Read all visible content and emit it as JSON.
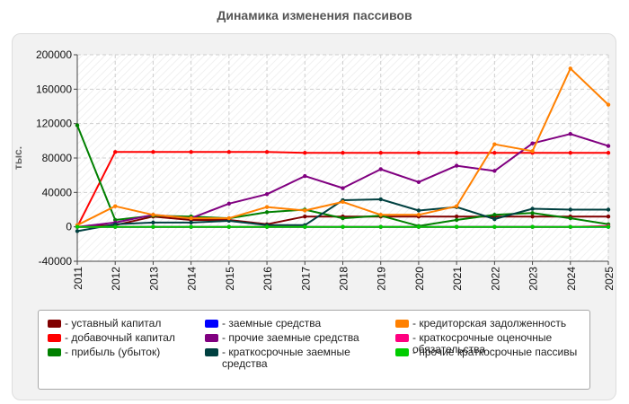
{
  "chart_data": {
    "type": "line",
    "title": "Динамика изменения пассивов",
    "ylabel": "тыс.",
    "xlabel": "",
    "categories": [
      "2011",
      "2012",
      "2013",
      "2014",
      "2015",
      "2016",
      "2017",
      "2018",
      "2019",
      "2020",
      "2021",
      "2022",
      "2023",
      "2024",
      "2025"
    ],
    "ylim": [
      -40000,
      200000
    ],
    "yticks": [
      -40000,
      0,
      40000,
      80000,
      120000,
      160000,
      200000
    ],
    "grid": true,
    "legend_position": "bottom",
    "series": [
      {
        "name": "уставный капитал",
        "color": "#800000",
        "values": [
          0,
          2000,
          12000,
          8000,
          8000,
          3000,
          12000,
          12000,
          12000,
          12000,
          12000,
          12000,
          12000,
          12000,
          12000
        ]
      },
      {
        "name": "добавочный капитал",
        "color": "#ff0000",
        "values": [
          0,
          87000,
          87000,
          87000,
          87000,
          87000,
          86000,
          86000,
          86000,
          86000,
          86000,
          86000,
          86000,
          86000,
          86000
        ]
      },
      {
        "name": "прибыль (убыток)",
        "color": "#008000",
        "values": [
          118000,
          8000,
          13000,
          12000,
          10000,
          17000,
          20000,
          10000,
          13000,
          1000,
          8000,
          14000,
          16000,
          10000,
          3000
        ]
      },
      {
        "name": "заемные средства",
        "color": "#0000ff",
        "values": [
          0,
          0,
          0,
          0,
          0,
          0,
          0,
          0,
          0,
          0,
          0,
          0,
          0,
          0,
          0
        ]
      },
      {
        "name": "прочие заемные средства",
        "color": "#800080",
        "values": [
          0,
          5000,
          14000,
          10000,
          27000,
          38000,
          59000,
          45000,
          67000,
          52000,
          71000,
          65000,
          97000,
          108000,
          94000
        ]
      },
      {
        "name": "краткосрочные заемные средства",
        "color": "#004040",
        "values": [
          -5000,
          3000,
          5000,
          5000,
          7000,
          2000,
          2000,
          31000,
          32000,
          19000,
          23000,
          9000,
          21000,
          20000,
          20000
        ]
      },
      {
        "name": "кредиторская задолженность",
        "color": "#ff8000",
        "values": [
          2000,
          24000,
          14000,
          10000,
          10000,
          23000,
          19000,
          29000,
          14000,
          14000,
          24000,
          96000,
          88000,
          184000,
          142000
        ]
      },
      {
        "name": "краткосрочные оценочные обязательства",
        "color": "#ff0080",
        "values": [
          0,
          0,
          0,
          0,
          0,
          0,
          0,
          0,
          0,
          0,
          0,
          0,
          0,
          0,
          1000
        ]
      },
      {
        "name": "прочие краткосрочные пассивы",
        "color": "#00cc00",
        "values": [
          0,
          0,
          0,
          0,
          0,
          0,
          0,
          0,
          0,
          0,
          0,
          0,
          0,
          0,
          0
        ]
      }
    ]
  }
}
